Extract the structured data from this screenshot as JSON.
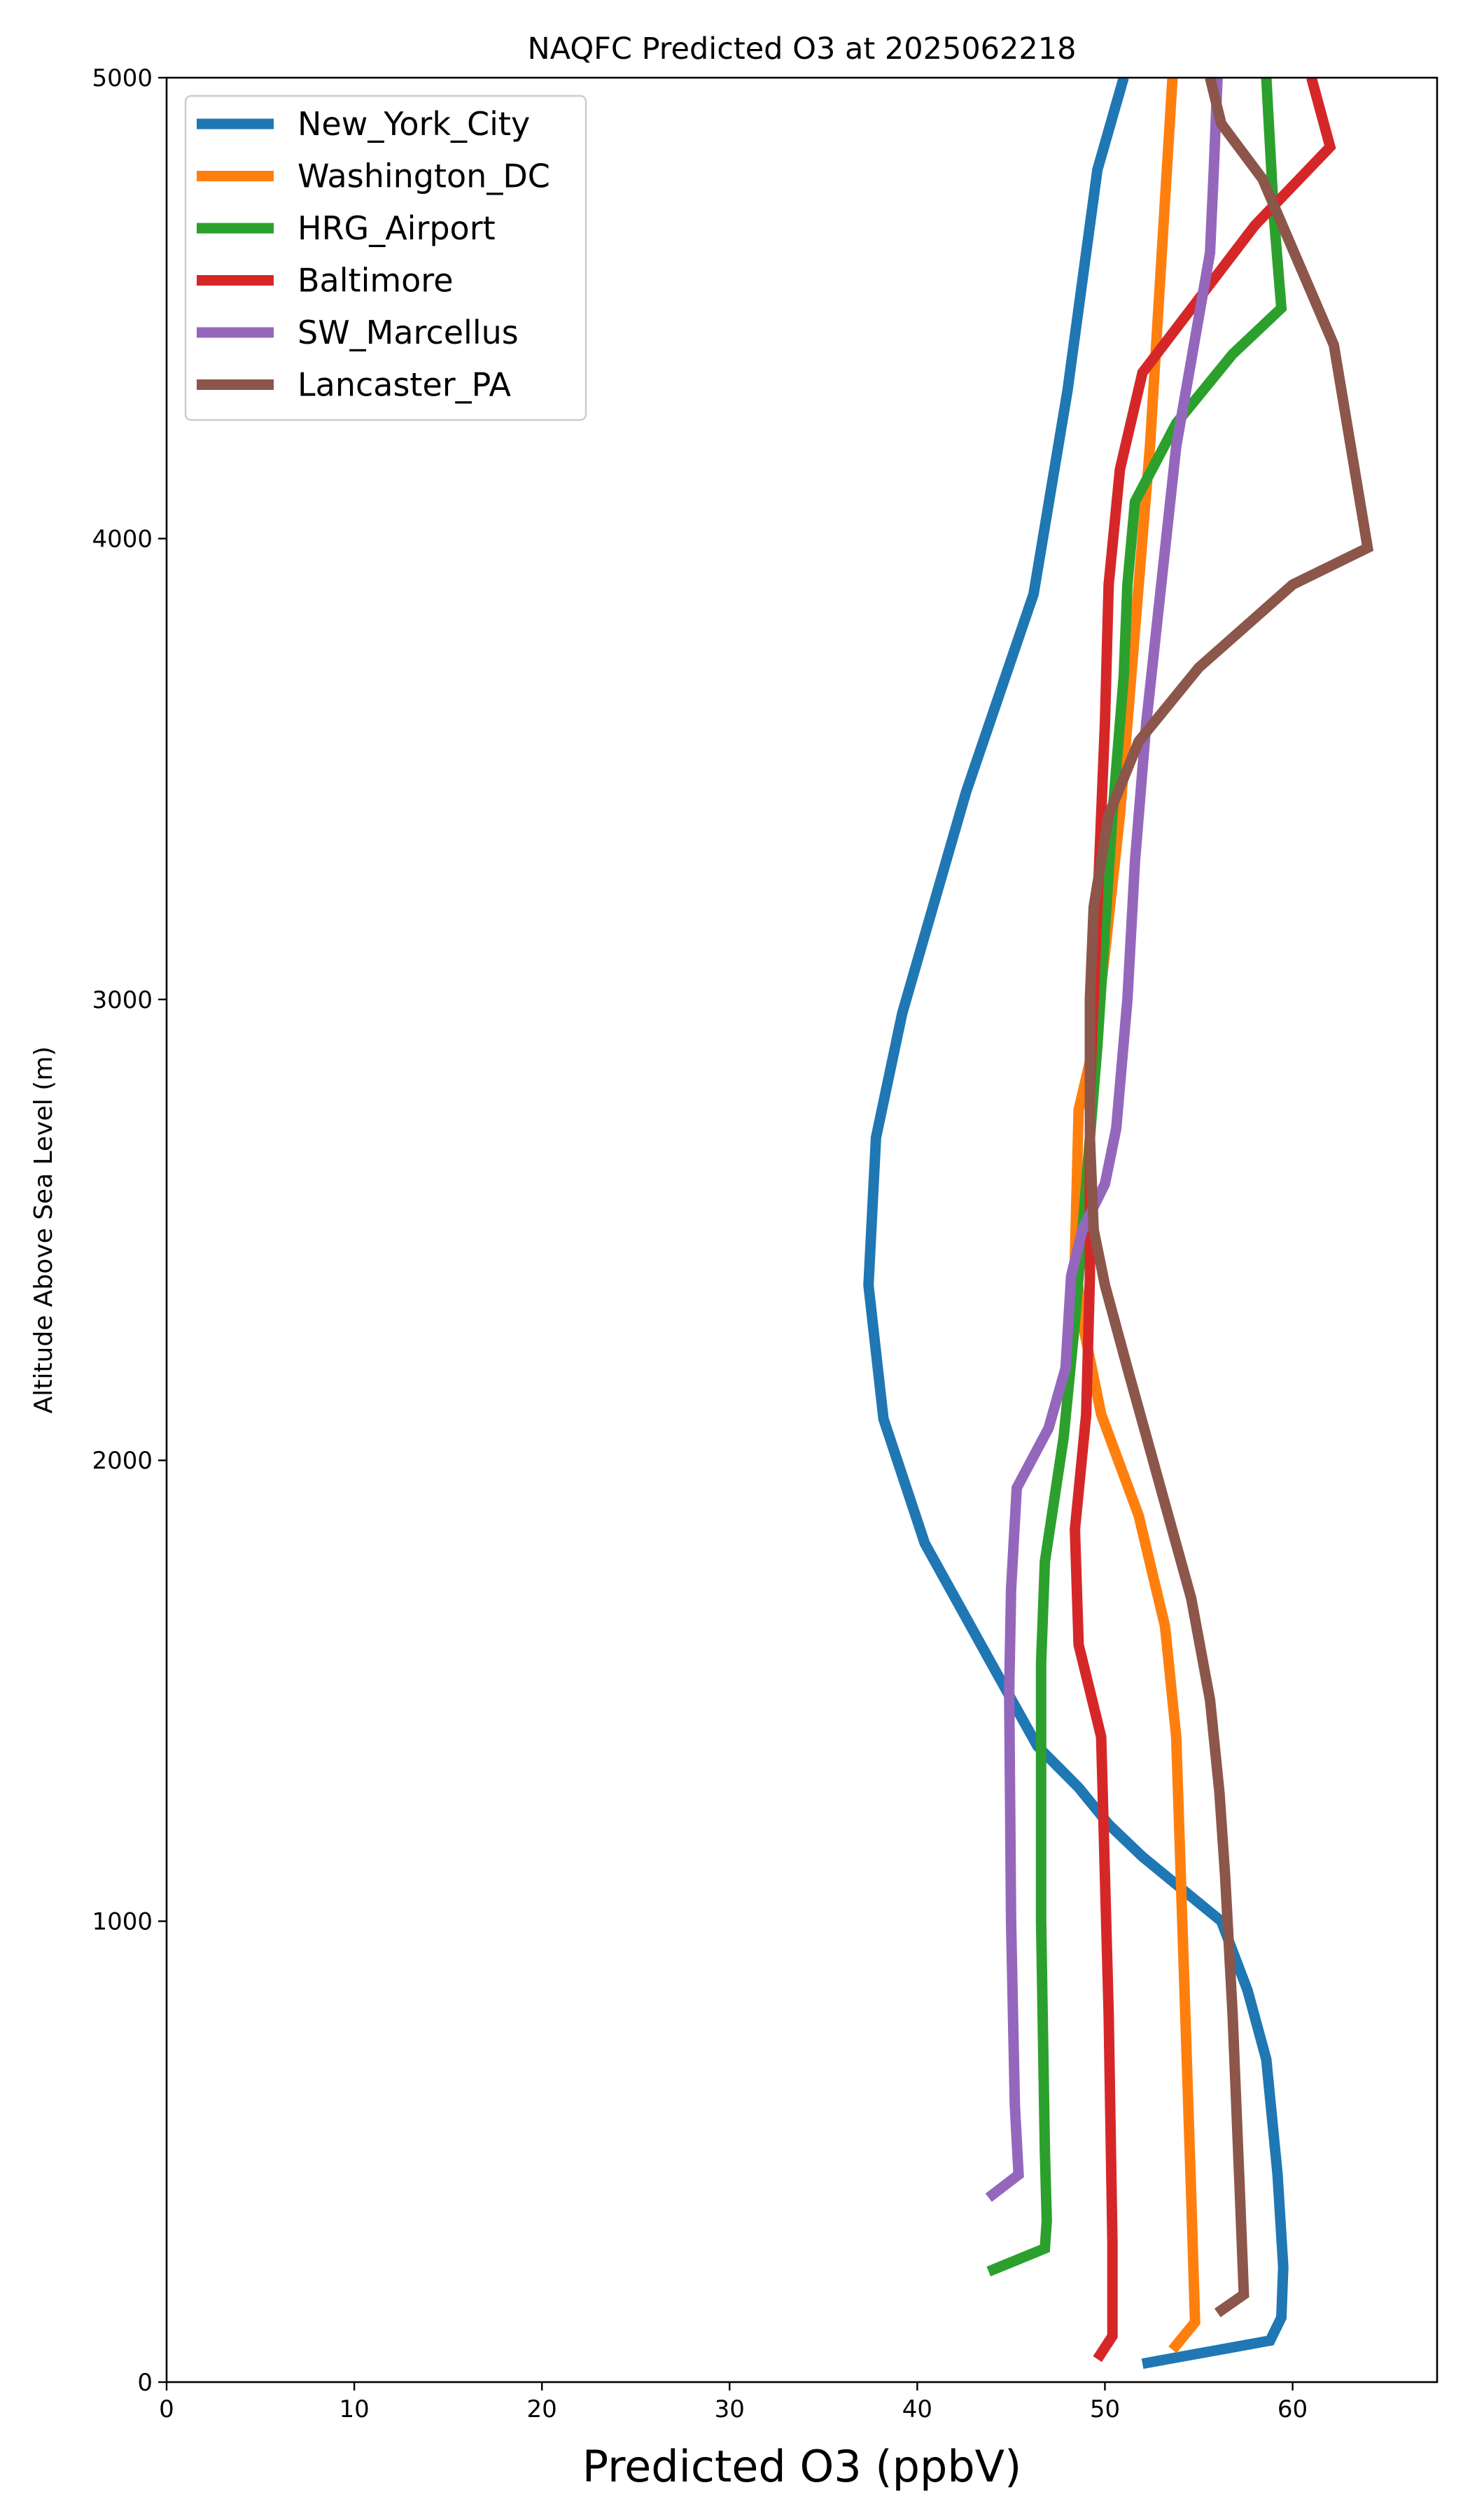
{
  "chart_data": {
    "type": "line",
    "title": "NAQFC Predicted O3 at 2025062218",
    "xlabel": "Predicted O3 (ppbV)",
    "ylabel": "Altitude Above Sea Level (m)",
    "xlim": [
      0,
      67.7
    ],
    "ylim": [
      0,
      5000
    ],
    "xticks": [
      0,
      10,
      20,
      30,
      40,
      50,
      60
    ],
    "yticks": [
      0,
      1000,
      2000,
      3000,
      4000,
      5000
    ],
    "grid": false,
    "legend_position": "top-left",
    "series": [
      {
        "name": "New_York_City",
        "color": "#1f77b4",
        "points": [
          [
            52.0,
            40
          ],
          [
            58.8,
            90
          ],
          [
            59.4,
            140
          ],
          [
            59.5,
            250
          ],
          [
            59.2,
            450
          ],
          [
            58.6,
            700
          ],
          [
            57.6,
            850
          ],
          [
            56.2,
            1000
          ],
          [
            54.4,
            1060
          ],
          [
            52.0,
            1140
          ],
          [
            50.2,
            1210
          ],
          [
            48.6,
            1290
          ],
          [
            46.4,
            1380
          ],
          [
            43.8,
            1570
          ],
          [
            40.4,
            1820
          ],
          [
            38.2,
            2090
          ],
          [
            37.4,
            2380
          ],
          [
            37.8,
            2700
          ],
          [
            39.2,
            2970
          ],
          [
            42.6,
            3450
          ],
          [
            46.2,
            3880
          ],
          [
            48.0,
            4320
          ],
          [
            49.6,
            4800
          ],
          [
            51.0,
            5000
          ]
        ]
      },
      {
        "name": "Washington_DC",
        "color": "#ff7f0e",
        "points": [
          [
            53.6,
            70
          ],
          [
            54.8,
            130
          ],
          [
            54.6,
            400
          ],
          [
            54.2,
            900
          ],
          [
            53.8,
            1400
          ],
          [
            53.2,
            1640
          ],
          [
            51.8,
            1880
          ],
          [
            49.8,
            2100
          ],
          [
            48.8,
            2300
          ],
          [
            48.4,
            2440
          ],
          [
            48.6,
            2760
          ],
          [
            49.4,
            2900
          ],
          [
            50.0,
            3100
          ],
          [
            50.8,
            3400
          ],
          [
            51.4,
            3700
          ],
          [
            52.4,
            4200
          ],
          [
            53.0,
            4600
          ],
          [
            53.6,
            5000
          ]
        ]
      },
      {
        "name": "HRG_Airport",
        "color": "#2ca02c",
        "points": [
          [
            43.8,
            240
          ],
          [
            46.8,
            290
          ],
          [
            46.9,
            350
          ],
          [
            46.8,
            500
          ],
          [
            46.6,
            1000
          ],
          [
            46.6,
            1560
          ],
          [
            46.8,
            1780
          ],
          [
            47.8,
            2050
          ],
          [
            48.4,
            2300
          ],
          [
            49.0,
            2600
          ],
          [
            49.6,
            2900
          ],
          [
            50.4,
            3400
          ],
          [
            51.0,
            3700
          ],
          [
            51.2,
            3900
          ],
          [
            51.6,
            4080
          ],
          [
            53.8,
            4250
          ],
          [
            56.8,
            4400
          ],
          [
            59.4,
            4500
          ],
          [
            59.0,
            4700
          ],
          [
            58.6,
            5000
          ]
        ]
      },
      {
        "name": "Baltimore",
        "color": "#d62728",
        "points": [
          [
            49.6,
            50
          ],
          [
            50.4,
            100
          ],
          [
            50.4,
            300
          ],
          [
            50.2,
            800
          ],
          [
            49.8,
            1400
          ],
          [
            48.6,
            1600
          ],
          [
            48.4,
            1850
          ],
          [
            49.0,
            2100
          ],
          [
            49.2,
            2400
          ],
          [
            49.2,
            2800
          ],
          [
            49.6,
            3200
          ],
          [
            50.0,
            3600
          ],
          [
            50.2,
            3900
          ],
          [
            50.8,
            4150
          ],
          [
            52.0,
            4360
          ],
          [
            55.0,
            4520
          ],
          [
            58.0,
            4680
          ],
          [
            62.0,
            4850
          ],
          [
            61.0,
            5000
          ]
        ]
      },
      {
        "name": "SW_Marcellus",
        "color": "#9467bd",
        "points": [
          [
            43.8,
            400
          ],
          [
            45.4,
            450
          ],
          [
            45.2,
            600
          ],
          [
            45.0,
            1000
          ],
          [
            44.9,
            1500
          ],
          [
            45.0,
            1720
          ],
          [
            45.3,
            1940
          ],
          [
            47.0,
            2070
          ],
          [
            47.9,
            2200
          ],
          [
            48.2,
            2400
          ],
          [
            48.8,
            2500
          ],
          [
            50.0,
            2600
          ],
          [
            50.6,
            2720
          ],
          [
            51.2,
            3000
          ],
          [
            51.6,
            3300
          ],
          [
            52.2,
            3600
          ],
          [
            53.0,
            3900
          ],
          [
            53.8,
            4200
          ],
          [
            55.6,
            4620
          ],
          [
            55.8,
            4800
          ],
          [
            56.0,
            5000
          ]
        ]
      },
      {
        "name": "Lancaster_PA",
        "color": "#8c564b",
        "points": [
          [
            56.0,
            150
          ],
          [
            57.4,
            190
          ],
          [
            57.2,
            400
          ],
          [
            56.8,
            800
          ],
          [
            56.4,
            1100
          ],
          [
            56.1,
            1280
          ],
          [
            55.6,
            1480
          ],
          [
            54.6,
            1700
          ],
          [
            52.9,
            1950
          ],
          [
            51.2,
            2200
          ],
          [
            50.0,
            2380
          ],
          [
            49.4,
            2500
          ],
          [
            49.2,
            2700
          ],
          [
            49.2,
            3000
          ],
          [
            49.4,
            3200
          ],
          [
            50.2,
            3400
          ],
          [
            51.8,
            3560
          ],
          [
            55.0,
            3720
          ],
          [
            60.0,
            3900
          ],
          [
            64.0,
            3980
          ],
          [
            62.2,
            4420
          ],
          [
            58.4,
            4780
          ],
          [
            56.2,
            4900
          ],
          [
            55.6,
            5000
          ]
        ]
      }
    ]
  }
}
